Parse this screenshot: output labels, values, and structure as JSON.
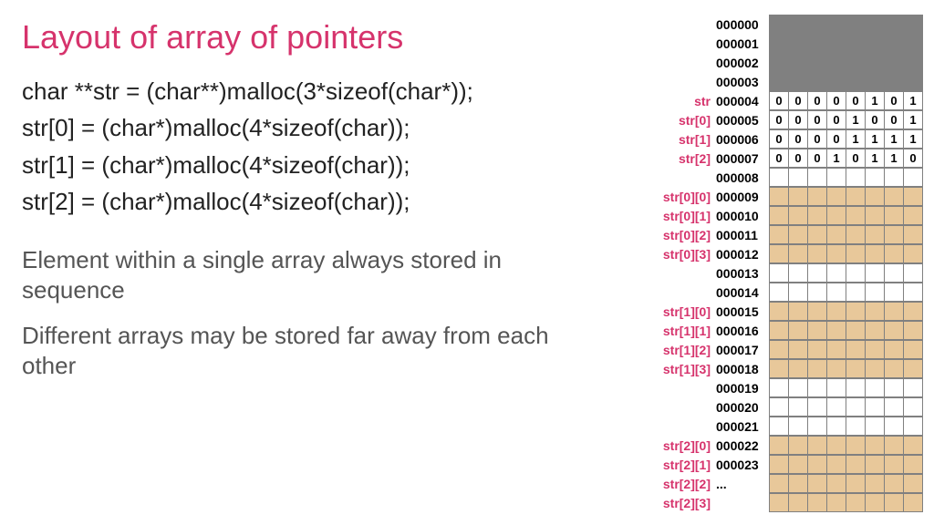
{
  "title": "Layout of array of pointers",
  "code": {
    "line1": "char **str = (char**)malloc(3*sizeof(char*));",
    "line2": "str[0] = (char*)malloc(4*sizeof(char));",
    "line3": "str[1] = (char*)malloc(4*sizeof(char));",
    "line4": "str[2] = (char*)malloc(4*sizeof(char));"
  },
  "notes": {
    "n1": "Element within a single array always stored in sequence",
    "n2": "Different arrays may be stored far away from each other"
  },
  "colors": {
    "title": "#d6336c",
    "label": "#d6336c",
    "text": "#222222",
    "note": "#555555",
    "cell_border": "#808080",
    "fill_gray": "#808080",
    "fill_white": "#ffffff",
    "fill_tan": "#e8c89a"
  },
  "memory": {
    "cols": 8,
    "rows": [
      {
        "label": "",
        "addr": "000000",
        "fill": "gray",
        "bits": null
      },
      {
        "label": "",
        "addr": "000001",
        "fill": "gray",
        "bits": null
      },
      {
        "label": "",
        "addr": "000002",
        "fill": "gray",
        "bits": null
      },
      {
        "label": "",
        "addr": "000003",
        "fill": "gray",
        "bits": null
      },
      {
        "label": "str",
        "addr": "000004",
        "fill": "white",
        "bits": [
          "0",
          "0",
          "0",
          "0",
          "0",
          "1",
          "0",
          "1"
        ]
      },
      {
        "label": "str[0]",
        "addr": "000005",
        "fill": "white",
        "bits": [
          "0",
          "0",
          "0",
          "0",
          "1",
          "0",
          "0",
          "1"
        ]
      },
      {
        "label": "str[1]",
        "addr": "000006",
        "fill": "white",
        "bits": [
          "0",
          "0",
          "0",
          "0",
          "1",
          "1",
          "1",
          "1"
        ]
      },
      {
        "label": "str[2]",
        "addr": "000007",
        "fill": "white",
        "bits": [
          "0",
          "0",
          "0",
          "1",
          "0",
          "1",
          "1",
          "0"
        ]
      },
      {
        "label": "",
        "addr": "000008",
        "fill": "white",
        "bits": null
      },
      {
        "label": "str[0][0]",
        "addr": "000009",
        "fill": "tan",
        "bits": null
      },
      {
        "label": "str[0][1]",
        "addr": "000010",
        "fill": "tan",
        "bits": null
      },
      {
        "label": "str[0][2]",
        "addr": "000011",
        "fill": "tan",
        "bits": null
      },
      {
        "label": "str[0][3]",
        "addr": "000012",
        "fill": "tan",
        "bits": null
      },
      {
        "label": "",
        "addr": "000013",
        "fill": "white",
        "bits": null
      },
      {
        "label": "",
        "addr": "000014",
        "fill": "white",
        "bits": null
      },
      {
        "label": "str[1][0]",
        "addr": "000015",
        "fill": "tan",
        "bits": null
      },
      {
        "label": "str[1][1]",
        "addr": "000016",
        "fill": "tan",
        "bits": null
      },
      {
        "label": "str[1][2]",
        "addr": "000017",
        "fill": "tan",
        "bits": null
      },
      {
        "label": "str[1][3]",
        "addr": "000018",
        "fill": "tan",
        "bits": null
      },
      {
        "label": "",
        "addr": "000019",
        "fill": "white",
        "bits": null
      },
      {
        "label": "",
        "addr": "000020",
        "fill": "white",
        "bits": null
      },
      {
        "label": "",
        "addr": "000021",
        "fill": "white",
        "bits": null
      },
      {
        "label": "str[2][0]",
        "addr": "000022",
        "fill": "tan",
        "bits": null
      },
      {
        "label": "str[2][1]",
        "addr": "000023",
        "fill": "tan",
        "bits": null
      },
      {
        "label": "str[2][2]",
        "addr": "...",
        "fill": "tan",
        "bits": null
      },
      {
        "label": "str[2][3]",
        "addr": "",
        "fill": "tan",
        "bits": null
      }
    ]
  }
}
